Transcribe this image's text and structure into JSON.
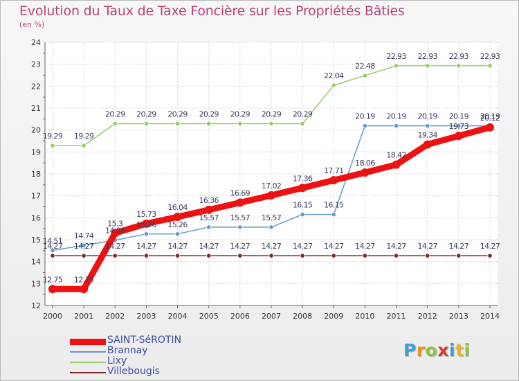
{
  "chart_data": {
    "type": "line",
    "title": "Evolution du Taux de Taxe Foncière sur les Propriétés Bâties",
    "ylabel": "(en %)",
    "xlabel": "",
    "x": [
      "2000",
      "2001",
      "2002",
      "2003",
      "2004",
      "2005",
      "2006",
      "2007",
      "2008",
      "2009",
      "2010",
      "2011",
      "2012",
      "2013",
      "2014"
    ],
    "ylim": [
      12,
      24
    ],
    "yticks": [
      "12",
      "13",
      "14",
      "15",
      "16",
      "17",
      "18",
      "19",
      "20",
      "21",
      "22",
      "23",
      "24"
    ],
    "grid": true,
    "legend_position": "bottom-left",
    "series": [
      {
        "name": "SAINT-SéROTIN",
        "color": "#ee1111",
        "values": [
          12.75,
          12.75,
          15.3,
          15.73,
          16.04,
          16.36,
          16.69,
          17.02,
          17.36,
          17.71,
          18.06,
          18.42,
          19.34,
          19.73,
          20.12
        ],
        "labels": [
          "12.75",
          "12.75",
          "15.3",
          "15.73",
          "16.04",
          "16.36",
          "16.69",
          "17.02",
          "17.36",
          "17.71",
          "18.06",
          "18.42",
          "19.34",
          "19.73",
          "20.12"
        ]
      },
      {
        "name": "Brannay",
        "color": "#6699cc",
        "values": [
          14.51,
          14.74,
          14.98,
          15.26,
          15.26,
          15.57,
          15.57,
          15.57,
          16.15,
          16.15,
          20.19,
          20.19,
          20.19,
          20.19,
          20.19
        ],
        "labels": [
          "14.51",
          "14.74",
          "14.98",
          "15.26",
          "15.26",
          "15.57",
          "15.57",
          "15.57",
          "16.15",
          "16.15",
          "20.19",
          "20.19",
          "20.19",
          "20.19",
          "20.19"
        ]
      },
      {
        "name": "Lixy",
        "color": "#99cc66",
        "values": [
          19.29,
          19.29,
          20.29,
          20.29,
          20.29,
          20.29,
          20.29,
          20.29,
          20.29,
          22.04,
          22.48,
          22.93,
          22.93,
          22.93,
          22.93
        ],
        "labels": [
          "19.29",
          "19.29",
          "20.29",
          "20.29",
          "20.29",
          "20.29",
          "20.29",
          "20.29",
          "20.29",
          "22.04",
          "22.48",
          "22.93",
          "22.93",
          "22.93",
          "22.93"
        ]
      },
      {
        "name": "Villebougis",
        "color": "#7a2a2a",
        "values": [
          14.27,
          14.27,
          14.27,
          14.27,
          14.27,
          14.27,
          14.27,
          14.27,
          14.27,
          14.27,
          14.27,
          14.27,
          14.27,
          14.27,
          14.27
        ],
        "labels": [
          "14.27",
          "14.27",
          "14.27",
          "14.27",
          "14.27",
          "14.27",
          "14.27",
          "14.27",
          "14.27",
          "14.27",
          "14.27",
          "14.27",
          "14.27",
          "14.27",
          "14.27"
        ]
      }
    ]
  },
  "brand": {
    "letters": [
      {
        "char": "P",
        "color": "#3aa0dc"
      },
      {
        "char": "r",
        "color": "#f28c1e"
      },
      {
        "char": "o",
        "color": "#8cc63f"
      },
      {
        "char": "x",
        "color": "#e2342a"
      },
      {
        "char": "i",
        "color": "#3aa0dc"
      },
      {
        "char": "t",
        "color": "#f2b21e"
      },
      {
        "char": "i",
        "color": "#8cc63f"
      }
    ]
  }
}
